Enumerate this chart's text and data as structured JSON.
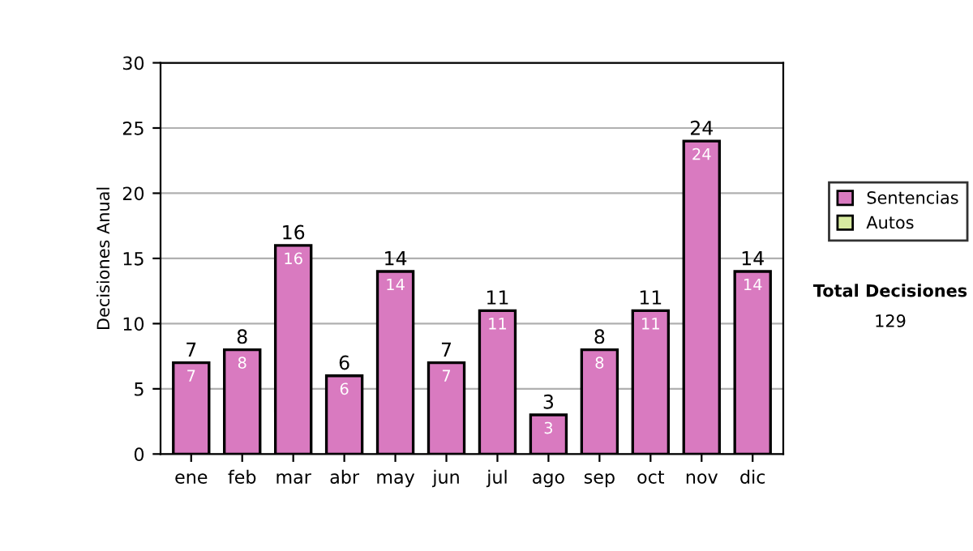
{
  "chart_data": {
    "type": "bar",
    "stacked": true,
    "ylabel": "Decisiones Anual",
    "categories": [
      "ene",
      "feb",
      "mar",
      "abr",
      "may",
      "jun",
      "jul",
      "ago",
      "sep",
      "oct",
      "nov",
      "dic"
    ],
    "series": [
      {
        "name": "Sentencias",
        "color": "#d97ac0",
        "values": [
          7,
          8,
          16,
          6,
          14,
          7,
          11,
          3,
          8,
          11,
          24,
          14
        ],
        "value_labels": [
          "7",
          "8",
          "16",
          "6",
          "14",
          "7",
          "11",
          "3",
          "8",
          "11",
          "24",
          "14"
        ]
      },
      {
        "name": "Autos",
        "color": "#d8eba0",
        "values": [
          null,
          null,
          null,
          null,
          null,
          null,
          null,
          null,
          null,
          null,
          null,
          null
        ]
      }
    ],
    "totals": [
      "7",
      "8",
      "16",
      "6",
      "14",
      "7",
      "11",
      "3",
      "8",
      "11",
      "24",
      "14"
    ],
    "ylim": [
      0,
      30
    ],
    "yticks": [
      0,
      5,
      10,
      15,
      20,
      25,
      30
    ],
    "grid": "y",
    "legend": "right",
    "annotations": [
      "Total Decisiones",
      "129"
    ]
  }
}
